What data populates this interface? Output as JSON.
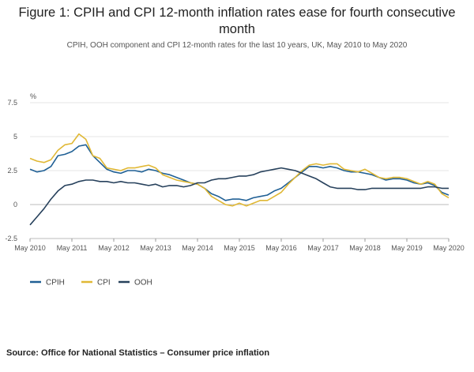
{
  "title": "Figure 1: CPIH and CPI 12-month inflation rates ease for fourth consecutive month",
  "subtitle": "CPIH, OOH component and CPI 12-month rates for the last 10 years, UK, May 2010 to May 2020",
  "source": "Source: Office for National Statistics – Consumer price inflation",
  "chart_data": {
    "type": "line",
    "ylabel": "%",
    "xlabel": "",
    "ylim": [
      -2.5,
      7.5
    ],
    "yticks": [
      "7.5",
      "5",
      "2.5",
      "0",
      "-2.5"
    ],
    "ytick_values": [
      7.5,
      5,
      2.5,
      0,
      -2.5
    ],
    "xlim": [
      2010.333,
      2020.333
    ],
    "xticks": [
      "May 2010",
      "May 2011",
      "May 2012",
      "May 2013",
      "May 2014",
      "May 2015",
      "May 2016",
      "May 2017",
      "May 2018",
      "May 2019",
      "May 2020"
    ],
    "xtick_values": [
      2010.333,
      2011.333,
      2012.333,
      2013.333,
      2014.333,
      2015.333,
      2016.333,
      2017.333,
      2018.333,
      2019.333,
      2020.333
    ],
    "grid": true,
    "legend_position": "bottom-left",
    "series": [
      {
        "name": "CPIH",
        "color": "#206095",
        "x": [
          2010.333,
          2010.5,
          2010.667,
          2010.833,
          2011.0,
          2011.167,
          2011.333,
          2011.5,
          2011.667,
          2011.833,
          2012.0,
          2012.167,
          2012.333,
          2012.5,
          2012.667,
          2012.833,
          2013.0,
          2013.167,
          2013.333,
          2013.5,
          2013.667,
          2013.833,
          2014.0,
          2014.167,
          2014.333,
          2014.5,
          2014.667,
          2014.833,
          2015.0,
          2015.167,
          2015.333,
          2015.5,
          2015.667,
          2015.833,
          2016.0,
          2016.167,
          2016.333,
          2016.5,
          2016.667,
          2016.833,
          2017.0,
          2017.167,
          2017.333,
          2017.5,
          2017.667,
          2017.833,
          2018.0,
          2018.167,
          2018.333,
          2018.5,
          2018.667,
          2018.833,
          2019.0,
          2019.167,
          2019.333,
          2019.5,
          2019.667,
          2019.833,
          2020.0,
          2020.167,
          2020.333
        ],
        "values": [
          2.6,
          2.4,
          2.5,
          2.8,
          3.6,
          3.7,
          3.9,
          4.3,
          4.4,
          3.6,
          3.1,
          2.6,
          2.4,
          2.3,
          2.5,
          2.5,
          2.4,
          2.6,
          2.5,
          2.3,
          2.2,
          2.0,
          1.8,
          1.6,
          1.5,
          1.2,
          0.8,
          0.6,
          0.3,
          0.4,
          0.4,
          0.3,
          0.5,
          0.6,
          0.7,
          1.0,
          1.2,
          1.6,
          2.0,
          2.4,
          2.8,
          2.8,
          2.7,
          2.8,
          2.7,
          2.5,
          2.4,
          2.4,
          2.3,
          2.2,
          2.0,
          1.8,
          1.9,
          1.9,
          1.8,
          1.6,
          1.5,
          1.6,
          1.4,
          0.9,
          0.7
        ]
      },
      {
        "name": "CPI",
        "color": "#e0b835",
        "x": [
          2010.333,
          2010.5,
          2010.667,
          2010.833,
          2011.0,
          2011.167,
          2011.333,
          2011.5,
          2011.667,
          2011.833,
          2012.0,
          2012.167,
          2012.333,
          2012.5,
          2012.667,
          2012.833,
          2013.0,
          2013.167,
          2013.333,
          2013.5,
          2013.667,
          2013.833,
          2014.0,
          2014.167,
          2014.333,
          2014.5,
          2014.667,
          2014.833,
          2015.0,
          2015.167,
          2015.333,
          2015.5,
          2015.667,
          2015.833,
          2016.0,
          2016.167,
          2016.333,
          2016.5,
          2016.667,
          2016.833,
          2017.0,
          2017.167,
          2017.333,
          2017.5,
          2017.667,
          2017.833,
          2018.0,
          2018.167,
          2018.333,
          2018.5,
          2018.667,
          2018.833,
          2019.0,
          2019.167,
          2019.333,
          2019.5,
          2019.667,
          2019.833,
          2020.0,
          2020.167,
          2020.333
        ],
        "values": [
          3.4,
          3.2,
          3.1,
          3.3,
          4.0,
          4.4,
          4.5,
          5.2,
          4.8,
          3.6,
          3.4,
          2.7,
          2.6,
          2.5,
          2.7,
          2.7,
          2.8,
          2.9,
          2.7,
          2.2,
          2.0,
          1.8,
          1.7,
          1.6,
          1.5,
          1.2,
          0.6,
          0.3,
          0.0,
          -0.1,
          0.1,
          -0.1,
          0.1,
          0.3,
          0.3,
          0.6,
          0.9,
          1.5,
          2.0,
          2.5,
          2.9,
          3.0,
          2.9,
          3.0,
          3.0,
          2.6,
          2.5,
          2.4,
          2.6,
          2.3,
          2.0,
          1.9,
          2.0,
          2.0,
          1.9,
          1.7,
          1.5,
          1.7,
          1.5,
          0.8,
          0.5
        ]
      },
      {
        "name": "OOH",
        "color": "#27415c",
        "x": [
          2010.333,
          2010.5,
          2010.667,
          2010.833,
          2011.0,
          2011.167,
          2011.333,
          2011.5,
          2011.667,
          2011.833,
          2012.0,
          2012.167,
          2012.333,
          2012.5,
          2012.667,
          2012.833,
          2013.0,
          2013.167,
          2013.333,
          2013.5,
          2013.667,
          2013.833,
          2014.0,
          2014.167,
          2014.333,
          2014.5,
          2014.667,
          2014.833,
          2015.0,
          2015.167,
          2015.333,
          2015.5,
          2015.667,
          2015.833,
          2016.0,
          2016.167,
          2016.333,
          2016.5,
          2016.667,
          2016.833,
          2017.0,
          2017.167,
          2017.333,
          2017.5,
          2017.667,
          2017.833,
          2018.0,
          2018.167,
          2018.333,
          2018.5,
          2018.667,
          2018.833,
          2019.0,
          2019.167,
          2019.333,
          2019.5,
          2019.667,
          2019.833,
          2020.0,
          2020.167,
          2020.333
        ],
        "values": [
          -1.5,
          -0.9,
          -0.3,
          0.4,
          1.0,
          1.4,
          1.5,
          1.7,
          1.8,
          1.8,
          1.7,
          1.7,
          1.6,
          1.7,
          1.6,
          1.6,
          1.5,
          1.4,
          1.5,
          1.3,
          1.4,
          1.4,
          1.3,
          1.4,
          1.6,
          1.6,
          1.8,
          1.9,
          1.9,
          2.0,
          2.1,
          2.1,
          2.2,
          2.4,
          2.5,
          2.6,
          2.7,
          2.6,
          2.5,
          2.3,
          2.1,
          1.9,
          1.6,
          1.3,
          1.2,
          1.2,
          1.2,
          1.1,
          1.1,
          1.2,
          1.2,
          1.2,
          1.2,
          1.2,
          1.2,
          1.2,
          1.2,
          1.3,
          1.3,
          1.2,
          1.2
        ]
      }
    ]
  }
}
